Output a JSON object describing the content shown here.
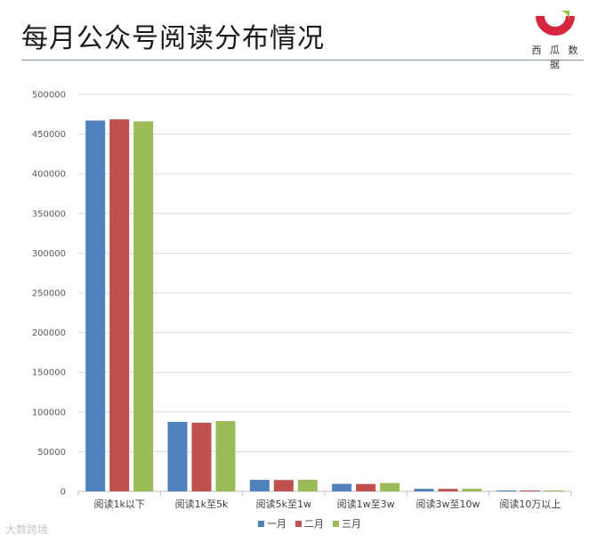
{
  "header": {
    "title": "每月公众号阅读分布情况",
    "brand_text": "西 瓜 数 据"
  },
  "watermark": "大数跨境",
  "colors": {
    "rule": "#7f8f99",
    "brand_red": "#d8253f",
    "brand_green": "#8cc63f"
  },
  "chart_data": {
    "type": "bar",
    "categories": [
      "阅读1k以下",
      "阅读1k至5k",
      "阅读5k至1w",
      "阅读1w至3w",
      "阅读3w至10w",
      "阅读10万以上"
    ],
    "series": [
      {
        "name": "一月",
        "color": "#4f81bd",
        "values": [
          467000,
          87500,
          14500,
          9500,
          3200,
          1200
        ]
      },
      {
        "name": "二月",
        "color": "#c0504d",
        "values": [
          468500,
          86500,
          14300,
          9300,
          3100,
          1100
        ]
      },
      {
        "name": "三月",
        "color": "#9bbb59",
        "values": [
          466000,
          88500,
          14600,
          10500,
          3300,
          1200
        ]
      }
    ],
    "ylim": [
      0,
      500000
    ],
    "yticks": [
      "0",
      "50000",
      "100000",
      "150000",
      "200000",
      "250000",
      "300000",
      "350000",
      "400000",
      "450000",
      "500000"
    ],
    "grid": true,
    "legend": "bottom"
  }
}
